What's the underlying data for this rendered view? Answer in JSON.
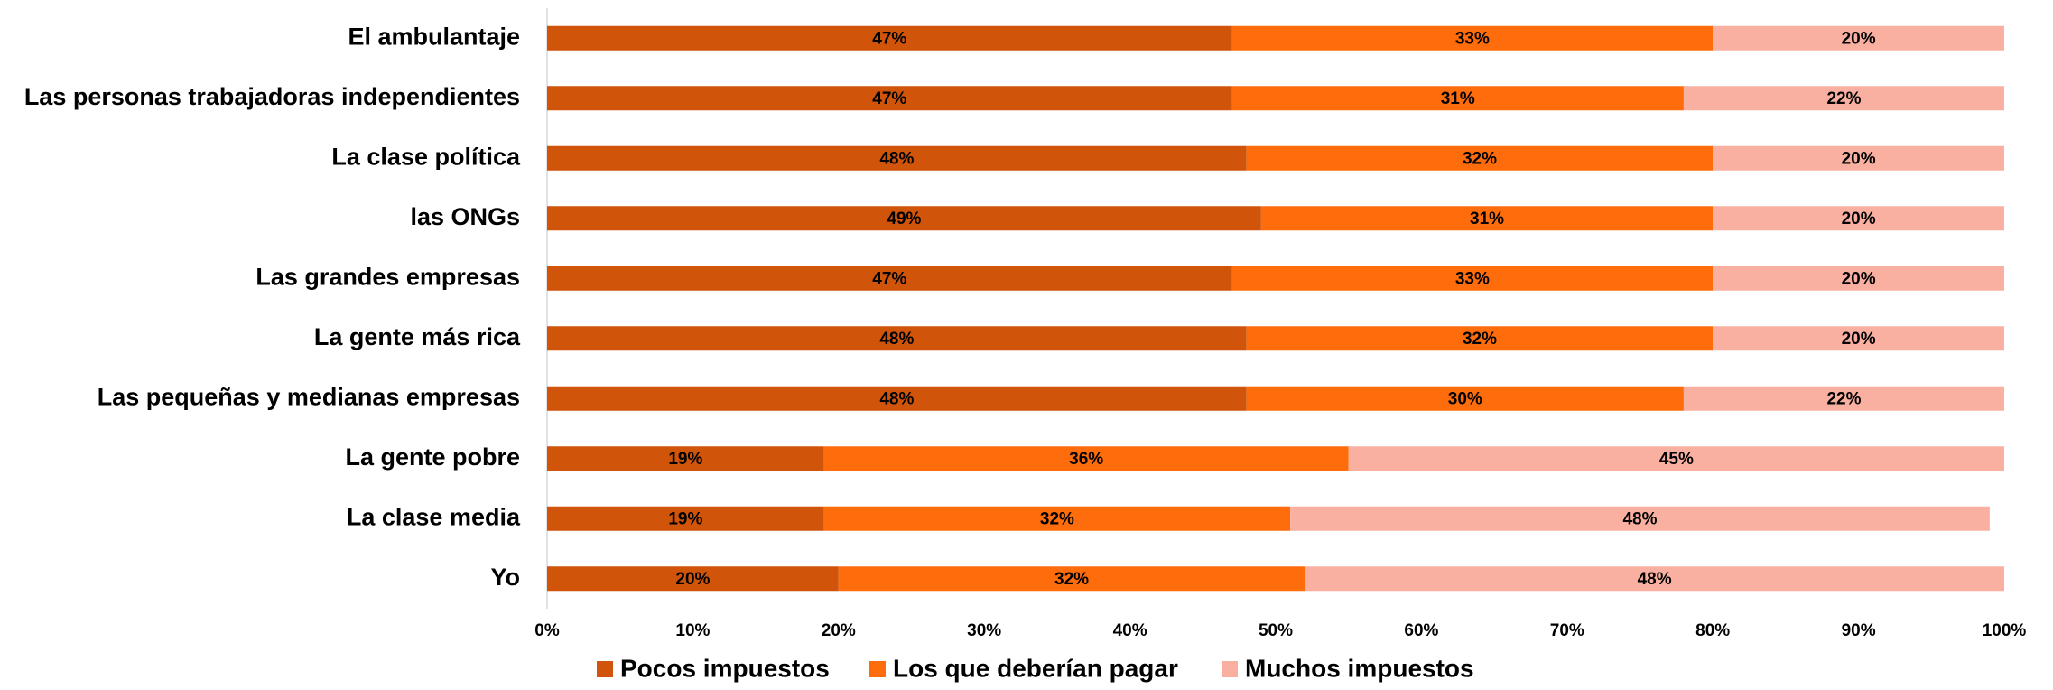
{
  "chart_data": {
    "type": "stacked_barh",
    "categories": [
      "El ambulantaje",
      "Las personas trabajadoras independientes",
      "La clase política",
      "las ONGs",
      "Las grandes empresas",
      "La gente más rica",
      "Las pequeñas y medianas empresas",
      "La gente pobre",
      "La clase media",
      "Yo"
    ],
    "series": [
      {
        "name": "Pocos impuestos",
        "color": "#d0540a",
        "values": [
          47,
          47,
          48,
          49,
          47,
          48,
          48,
          19,
          19,
          20
        ],
        "value_labels": [
          "47%",
          "47%",
          "48%",
          "49%",
          "47%",
          "48%",
          "48%",
          "19%",
          "19%",
          "20%"
        ]
      },
      {
        "name": "Los que deberían pagar",
        "color": "#ff6c0c",
        "values": [
          33,
          31,
          32,
          31,
          33,
          32,
          30,
          36,
          32,
          32
        ],
        "value_labels": [
          "33%",
          "31%",
          "32%",
          "31%",
          "33%",
          "32%",
          "30%",
          "36%",
          "32%",
          "32%"
        ]
      },
      {
        "name": "Muchos impuestos",
        "color": "#f9b0a1",
        "values": [
          20,
          22,
          20,
          20,
          20,
          20,
          22,
          45,
          48,
          48
        ],
        "value_labels": [
          "20%",
          "22%",
          "20%",
          "20%",
          "20%",
          "20%",
          "22%",
          "45%",
          "48%",
          "48%"
        ]
      }
    ],
    "xlim": [
      0,
      100
    ],
    "xticks": [
      {
        "value": 0,
        "label": "0%"
      },
      {
        "value": 10,
        "label": "10%"
      },
      {
        "value": 20,
        "label": "20%"
      },
      {
        "value": 30,
        "label": "30%"
      },
      {
        "value": 40,
        "label": "40%"
      },
      {
        "value": 50,
        "label": "50%"
      },
      {
        "value": 60,
        "label": "60%"
      },
      {
        "value": 70,
        "label": "70%"
      },
      {
        "value": 80,
        "label": "80%"
      },
      {
        "value": 90,
        "label": "90%"
      },
      {
        "value": 100,
        "label": "100%"
      }
    ],
    "grid": false,
    "legend": "bottom"
  }
}
